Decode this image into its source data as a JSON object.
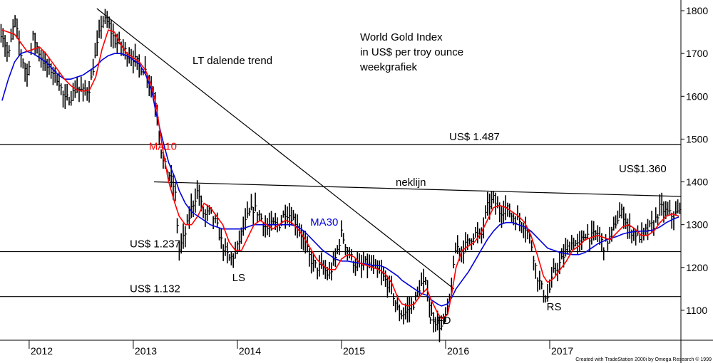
{
  "chart_data": {
    "type": "line",
    "title_lines": [
      "World Gold Index",
      "in US$ per troy ounce",
      "weekgrafiek"
    ],
    "x_ticks": [
      "2012",
      "2013",
      "2014",
      "2015",
      "2016",
      "2017"
    ],
    "y_ticks": [
      1100,
      1200,
      1300,
      1400,
      1500,
      1600,
      1700,
      1800
    ],
    "y_range": [
      1030,
      1825
    ],
    "x_range": [
      2011.72,
      2018.26
    ],
    "grid": false,
    "colors": {
      "price": "#000000",
      "ma10": "#ff0000",
      "ma30": "#0000dd"
    },
    "series": [
      {
        "name": "price",
        "kind": "weekly-bars",
        "x": [
          2011.74,
          2011.8,
          2011.86,
          2011.92,
          2011.98,
          2012.04,
          2012.1,
          2012.16,
          2012.22,
          2012.28,
          2012.34,
          2012.4,
          2012.46,
          2012.52,
          2012.58,
          2012.64,
          2012.7,
          2012.76,
          2012.82,
          2012.88,
          2012.94,
          2013.0,
          2013.06,
          2013.12,
          2013.18,
          2013.22,
          2013.28,
          2013.34,
          2013.4,
          2013.44,
          2013.5,
          2013.56,
          2013.62,
          2013.68,
          2013.74,
          2013.8,
          2013.86,
          2013.92,
          2013.98,
          2014.04,
          2014.1,
          2014.16,
          2014.22,
          2014.28,
          2014.34,
          2014.4,
          2014.46,
          2014.52,
          2014.58,
          2014.64,
          2014.7,
          2014.76,
          2014.82,
          2014.88,
          2014.94,
          2015.0,
          2015.06,
          2015.12,
          2015.18,
          2015.24,
          2015.3,
          2015.36,
          2015.42,
          2015.48,
          2015.54,
          2015.58,
          2015.64,
          2015.7,
          2015.76,
          2015.82,
          2015.86,
          2015.92,
          2015.96,
          2016.02,
          2016.06,
          2016.1,
          2016.16,
          2016.22,
          2016.28,
          2016.34,
          2016.4,
          2016.46,
          2016.52,
          2016.58,
          2016.64,
          2016.7,
          2016.76,
          2016.82,
          2016.88,
          2016.94,
          2016.98,
          2017.04,
          2017.1,
          2017.16,
          2017.22,
          2017.28,
          2017.34,
          2017.4,
          2017.46,
          2017.52,
          2017.58,
          2017.64,
          2017.7,
          2017.76,
          2017.82,
          2017.88,
          2017.94,
          2018.0,
          2018.06,
          2018.12,
          2018.18,
          2018.24
        ],
        "close": [
          1750,
          1690,
          1780,
          1700,
          1650,
          1740,
          1700,
          1670,
          1660,
          1640,
          1590,
          1600,
          1620,
          1610,
          1620,
          1700,
          1780,
          1770,
          1730,
          1720,
          1700,
          1690,
          1670,
          1660,
          1620,
          1580,
          1450,
          1420,
          1380,
          1240,
          1280,
          1340,
          1380,
          1320,
          1330,
          1300,
          1250,
          1220,
          1230,
          1280,
          1320,
          1340,
          1320,
          1290,
          1300,
          1300,
          1330,
          1320,
          1300,
          1260,
          1220,
          1200,
          1200,
          1180,
          1220,
          1280,
          1240,
          1210,
          1200,
          1210,
          1200,
          1190,
          1170,
          1150,
          1100,
          1090,
          1100,
          1120,
          1160,
          1160,
          1090,
          1070,
          1060,
          1100,
          1160,
          1250,
          1240,
          1260,
          1280,
          1270,
          1340,
          1360,
          1330,
          1340,
          1320,
          1310,
          1300,
          1260,
          1180,
          1140,
          1130,
          1190,
          1210,
          1240,
          1260,
          1250,
          1280,
          1270,
          1280,
          1250,
          1270,
          1310,
          1330,
          1290,
          1280,
          1270,
          1290,
          1300,
          1340,
          1330,
          1320,
          1330
        ]
      },
      {
        "name": "MA10",
        "x": [
          2011.74,
          2011.8,
          2011.86,
          2011.92,
          2011.98,
          2012.04,
          2012.1,
          2012.16,
          2012.22,
          2012.28,
          2012.34,
          2012.4,
          2012.46,
          2012.52,
          2012.58,
          2012.64,
          2012.7,
          2012.76,
          2012.82,
          2012.88,
          2012.94,
          2013.0,
          2013.06,
          2013.12,
          2013.18,
          2013.22,
          2013.28,
          2013.34,
          2013.4,
          2013.44,
          2013.5,
          2013.56,
          2013.62,
          2013.68,
          2013.74,
          2013.8,
          2013.86,
          2013.92,
          2013.98,
          2014.04,
          2014.1,
          2014.16,
          2014.22,
          2014.28,
          2014.34,
          2014.4,
          2014.46,
          2014.52,
          2014.58,
          2014.64,
          2014.7,
          2014.76,
          2014.82,
          2014.88,
          2014.94,
          2015.0,
          2015.06,
          2015.12,
          2015.18,
          2015.24,
          2015.3,
          2015.36,
          2015.42,
          2015.48,
          2015.54,
          2015.58,
          2015.64,
          2015.7,
          2015.76,
          2015.82,
          2015.86,
          2015.92,
          2015.96,
          2016.02,
          2016.06,
          2016.1,
          2016.16,
          2016.22,
          2016.28,
          2016.34,
          2016.4,
          2016.46,
          2016.52,
          2016.58,
          2016.64,
          2016.7,
          2016.76,
          2016.82,
          2016.88,
          2016.94,
          2016.98,
          2017.04,
          2017.1,
          2017.16,
          2017.22,
          2017.28,
          2017.34,
          2017.4,
          2017.46,
          2017.52,
          2017.58,
          2017.64,
          2017.7,
          2017.76,
          2017.82,
          2017.88,
          2017.94,
          2018.0,
          2018.06,
          2018.12,
          2018.18,
          2018.24
        ],
        "values": [
          1755,
          1750,
          1745,
          1725,
          1705,
          1710,
          1715,
          1700,
          1680,
          1660,
          1640,
          1625,
          1615,
          1612,
          1615,
          1645,
          1710,
          1755,
          1750,
          1720,
          1700,
          1690,
          1680,
          1660,
          1620,
          1580,
          1480,
          1400,
          1350,
          1320,
          1300,
          1300,
          1320,
          1350,
          1340,
          1320,
          1300,
          1260,
          1240,
          1240,
          1270,
          1300,
          1310,
          1300,
          1290,
          1300,
          1310,
          1305,
          1290,
          1270,
          1245,
          1220,
          1205,
          1195,
          1195,
          1220,
          1230,
          1225,
          1210,
          1205,
          1200,
          1195,
          1185,
          1165,
          1130,
          1115,
          1110,
          1115,
          1135,
          1150,
          1125,
          1095,
          1080,
          1090,
          1140,
          1200,
          1240,
          1250,
          1260,
          1280,
          1310,
          1340,
          1345,
          1340,
          1330,
          1320,
          1305,
          1275,
          1230,
          1180,
          1165,
          1175,
          1195,
          1215,
          1240,
          1250,
          1265,
          1270,
          1275,
          1270,
          1265,
          1280,
          1295,
          1300,
          1290,
          1275,
          1275,
          1285,
          1305,
          1320,
          1325,
          1320
        ]
      },
      {
        "name": "MA30",
        "x": [
          2011.74,
          2011.8,
          2011.86,
          2011.92,
          2011.98,
          2012.04,
          2012.1,
          2012.16,
          2012.22,
          2012.28,
          2012.34,
          2012.4,
          2012.46,
          2012.52,
          2012.58,
          2012.64,
          2012.7,
          2012.76,
          2012.82,
          2012.88,
          2012.94,
          2013.0,
          2013.06,
          2013.12,
          2013.18,
          2013.22,
          2013.28,
          2013.34,
          2013.4,
          2013.44,
          2013.5,
          2013.56,
          2013.62,
          2013.68,
          2013.74,
          2013.8,
          2013.86,
          2013.92,
          2013.98,
          2014.04,
          2014.1,
          2014.16,
          2014.22,
          2014.28,
          2014.34,
          2014.4,
          2014.46,
          2014.52,
          2014.58,
          2014.64,
          2014.7,
          2014.76,
          2014.82,
          2014.88,
          2014.94,
          2015.0,
          2015.06,
          2015.12,
          2015.18,
          2015.24,
          2015.3,
          2015.36,
          2015.42,
          2015.48,
          2015.54,
          2015.58,
          2015.64,
          2015.7,
          2015.76,
          2015.82,
          2015.86,
          2015.92,
          2015.96,
          2016.02,
          2016.06,
          2016.1,
          2016.16,
          2016.22,
          2016.28,
          2016.34,
          2016.4,
          2016.46,
          2016.52,
          2016.58,
          2016.64,
          2016.7,
          2016.76,
          2016.82,
          2016.88,
          2016.94,
          2016.98,
          2017.04,
          2017.1,
          2017.16,
          2017.22,
          2017.28,
          2017.34,
          2017.4,
          2017.46,
          2017.52,
          2017.58,
          2017.64,
          2017.7,
          2017.76,
          2017.82,
          2017.88,
          2017.94,
          2018.0,
          2018.06,
          2018.12,
          2018.18,
          2018.24
        ],
        "values": [
          1590,
          1640,
          1680,
          1700,
          1705,
          1700,
          1690,
          1680,
          1665,
          1650,
          1640,
          1640,
          1645,
          1650,
          1660,
          1670,
          1685,
          1695,
          1700,
          1700,
          1695,
          1685,
          1675,
          1650,
          1610,
          1560,
          1500,
          1445,
          1410,
          1380,
          1350,
          1330,
          1320,
          1310,
          1300,
          1295,
          1290,
          1290,
          1290,
          1290,
          1295,
          1300,
          1300,
          1300,
          1300,
          1300,
          1300,
          1300,
          1295,
          1285,
          1270,
          1255,
          1240,
          1230,
          1220,
          1215,
          1215,
          1212,
          1210,
          1208,
          1205,
          1205,
          1200,
          1190,
          1180,
          1170,
          1160,
          1150,
          1140,
          1135,
          1125,
          1115,
          1110,
          1115,
          1130,
          1150,
          1170,
          1190,
          1215,
          1240,
          1265,
          1285,
          1300,
          1305,
          1305,
          1300,
          1295,
          1285,
          1270,
          1255,
          1245,
          1240,
          1235,
          1232,
          1230,
          1230,
          1235,
          1245,
          1255,
          1262,
          1268,
          1272,
          1278,
          1282,
          1284,
          1285,
          1285,
          1288,
          1295,
          1305,
          1312,
          1318
        ]
      }
    ],
    "horizontal_lines": [
      {
        "value": 1487,
        "label": "US$ 1.487"
      },
      {
        "value": 1237,
        "label": "US$ 1.237"
      },
      {
        "value": 1132,
        "label": "US$ 1.132"
      }
    ],
    "trendlines": [
      {
        "label": "LT dalende trend",
        "from": [
          2012.65,
          1805
        ],
        "to": [
          2016.08,
          1150
        ]
      },
      {
        "label": "neklijn",
        "from": [
          2013.2,
          1400
        ],
        "to": [
          2018.26,
          1366
        ]
      }
    ],
    "neckline_value_label": "US$1.360",
    "annotations": [
      {
        "text": "LS",
        "x": 2013.95,
        "y": 1168
      },
      {
        "text": "HFD",
        "x": 2015.84,
        "y": 1068
      },
      {
        "text": "RS",
        "x": 2016.97,
        "y": 1100
      }
    ],
    "series_labels": [
      {
        "text": "MA10",
        "series": "MA10",
        "x": 2013.15,
        "y": 1475
      },
      {
        "text": "MA30",
        "series": "MA30",
        "x": 2014.7,
        "y": 1298
      }
    ],
    "credit": "Created with TradeStation 2000i by Omega Research © 1999"
  }
}
